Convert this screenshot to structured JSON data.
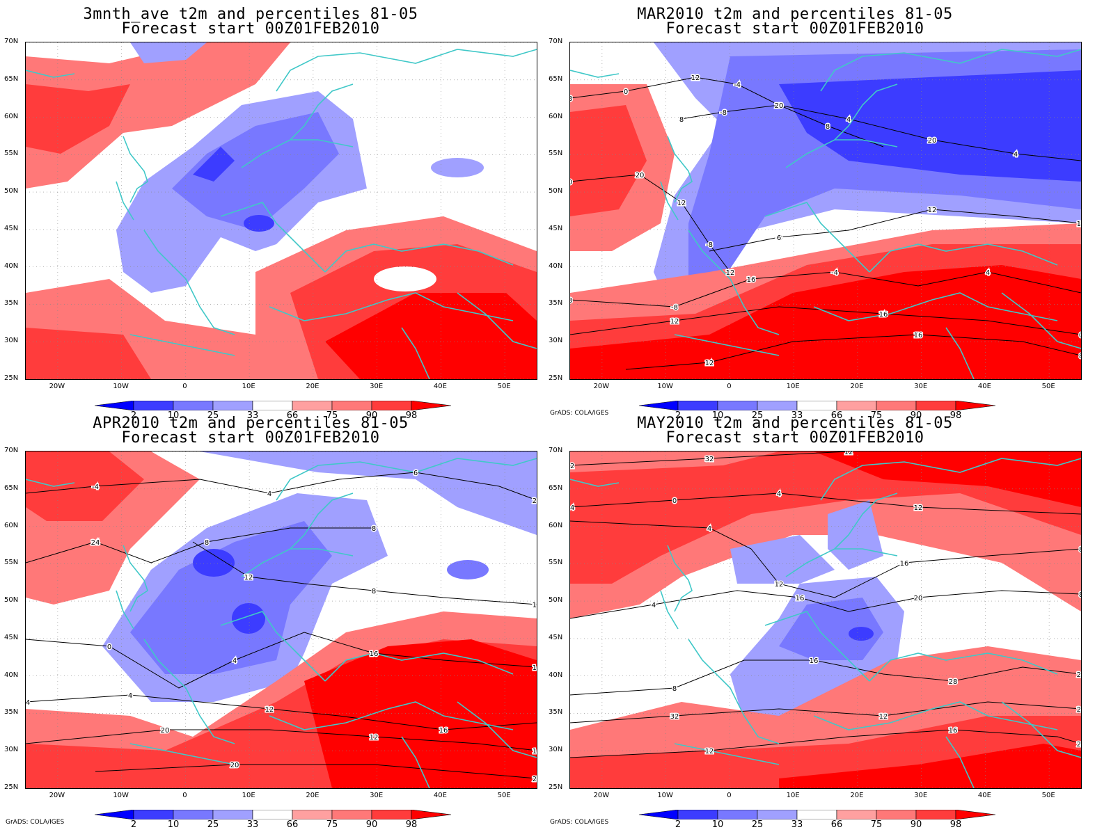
{
  "panels": [
    {
      "title1": "3mnth_ave t2m and percentiles 81-05",
      "title2": "Forecast start 00Z01FEB2010",
      "credit": ""
    },
    {
      "title1": "MAR2010 t2m and percentiles 81-05",
      "title2": "Forecast start 00Z01FEB2010",
      "credit": "GrADS: COLA/IGES"
    },
    {
      "title1": "APR2010 t2m and percentiles 81-05",
      "title2": "Forecast start 00Z01FEB2010",
      "credit": "GrADS: COLA/IGES"
    },
    {
      "title1": "MAY2010 t2m and percentiles 81-05",
      "title2": "Forecast start 00Z01FEB2010",
      "credit": "GrADS: COLA/IGES"
    }
  ],
  "lat_labels": [
    "70N",
    "65N",
    "60N",
    "55N",
    "50N",
    "45N",
    "40N",
    "35N",
    "30N",
    "25N"
  ],
  "lon_labels": [
    "20W",
    "10W",
    "0",
    "10E",
    "20E",
    "30E",
    "40E",
    "50E"
  ],
  "colorbar": {
    "labels": [
      "2",
      "10",
      "25",
      "33",
      "66",
      "75",
      "90",
      "98"
    ],
    "colors": [
      "#0000ff",
      "#3c3cff",
      "#7878ff",
      "#a0a0ff",
      "#ffffff",
      "#ffa0a0",
      "#ff7878",
      "#ff3c3c",
      "#ff0000"
    ]
  },
  "style": {
    "coast_color": "#40c8c8",
    "contour_color": "#000000"
  },
  "contour_labels": [
    [
      "0",
      "-4",
      "-8",
      "-8",
      "-8",
      "-8",
      "-4",
      "-4",
      "-8",
      "4",
      "0",
      "-4",
      "4",
      "0",
      "8",
      "0",
      "4",
      "4",
      "4",
      "0",
      "8",
      "8",
      "12",
      "8",
      "6",
      "8",
      "12",
      "12",
      "12",
      "12",
      "8",
      "12",
      "16",
      "16",
      "16",
      "20",
      "20",
      "20",
      "12"
    ],
    [
      "-4",
      "-4",
      "0",
      "0",
      "4",
      "4",
      "8",
      "4",
      "8",
      "8",
      "4",
      "12",
      "12",
      "8",
      "6",
      "8",
      "12",
      "16",
      "16",
      "16",
      "20",
      "20",
      "24",
      "12",
      "16",
      "24",
      "20",
      "28"
    ],
    [
      "0",
      "0",
      "4",
      "4",
      "8",
      "8",
      "12",
      "12",
      "12",
      "12",
      "16",
      "16",
      "12",
      "16",
      "12",
      "24",
      "16",
      "20",
      "28",
      "20",
      "24",
      "32",
      "4",
      "8",
      "8",
      "20",
      "32"
    ]
  ]
}
